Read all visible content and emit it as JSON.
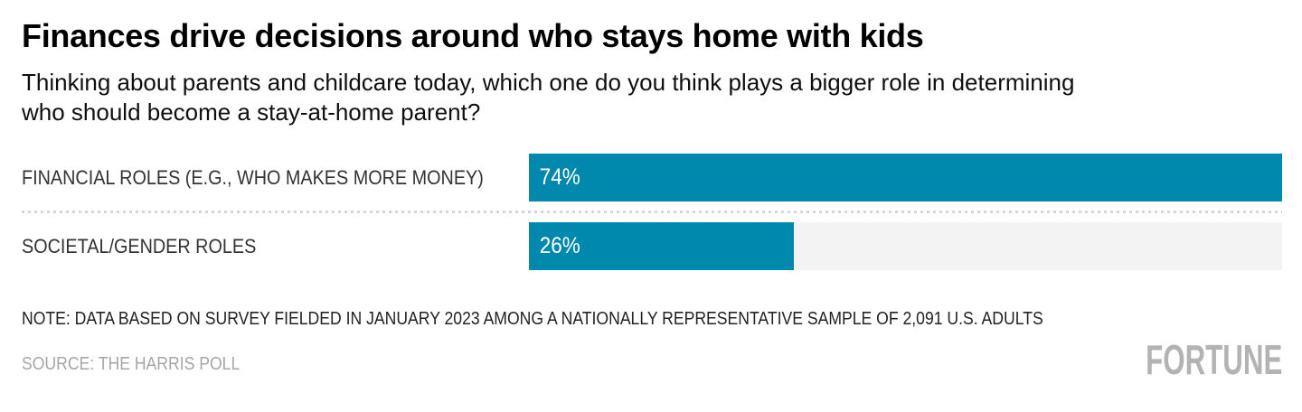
{
  "header": {
    "title": "Finances drive decisions around who stays home with kids",
    "subtitle_line1": "Thinking about parents and childcare today, which one do you think plays a bigger role in determining",
    "subtitle_line2": "who should become a stay-at-home parent?"
  },
  "chart_data": {
    "type": "bar",
    "orientation": "horizontal",
    "title": "Finances drive decisions around who stays home with kids",
    "xlabel": "",
    "ylabel": "",
    "categories": [
      "FINANCIAL ROLES (E.G., WHO MAKES MORE MONEY)",
      "SOCIETAL/GENDER ROLES"
    ],
    "values": [
      74,
      26
    ],
    "unit": "%",
    "scale_max": 74,
    "value_label_position": "inside-left",
    "grid": false,
    "legend": false,
    "bar_color": "#0089ad",
    "track_color": "#f3f3f3",
    "rows": [
      {
        "label": "FINANCIAL ROLES (E.G., WHO MAKES MORE MONEY)",
        "value": 74,
        "value_label": "74%"
      },
      {
        "label": "SOCIETAL/GENDER ROLES",
        "value": 26,
        "value_label": "26%"
      }
    ]
  },
  "footer": {
    "note": "NOTE: DATA BASED ON SURVEY FIELDED IN JANUARY 2023 AMONG A NATIONALLY REPRESENTATIVE SAMPLE OF 2,091 U.S. ADULTS",
    "source": "SOURCE: THE HARRIS POLL",
    "logo": "FORTUNE"
  }
}
